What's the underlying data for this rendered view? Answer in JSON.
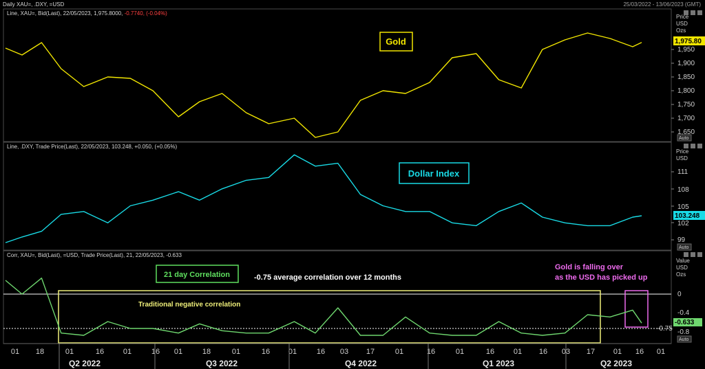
{
  "header": {
    "title": "Daily XAU=, .DXY, =USD",
    "date_range": "25/03/2022 - 13/06/2023 (GMT)"
  },
  "panels": {
    "gold": {
      "legend_prefix": "Line, XAU=, Bid(Last), 22/05/2023, 1,975.8000, ",
      "legend_change": "-0.7740, (-0.04%)",
      "label": "Gold",
      "axis_title": [
        "Price",
        "USD",
        "Ozs"
      ],
      "last_value": "1,975.80",
      "ticks": [
        "1,950",
        "1,900",
        "1,850",
        "1,800",
        "1,750",
        "1,700",
        "1,650"
      ],
      "auto": "Auto"
    },
    "dxy": {
      "legend": "Line, .DXY, Trade Price(Last), 22/05/2023, 103.248, +0.050, (+0.05%)",
      "label": "Dollar Index",
      "axis_title": [
        "Price",
        "USD"
      ],
      "last_value": "103.248",
      "ticks": [
        "111",
        "108",
        "105",
        "102",
        "99"
      ],
      "auto": "Auto"
    },
    "corr": {
      "legend": "Corr, XAU=, Bid(Last), =USD, Trade Price(Last),  21, 22/05/2023, -0.633",
      "label": "21 day Correlation",
      "avg_note": "-0.75 average correlation over 12 months",
      "trad_note": "Traditional negative correlation",
      "falling_note_1": "Gold is falling over",
      "falling_note_2": "as the USD has picked up",
      "axis_title": [
        "Value",
        "USD",
        "Ozs"
      ],
      "last_value": "-0.633",
      "ticks": [
        "0",
        "-0.4",
        "-0.75",
        "-0.8"
      ],
      "auto": "Auto"
    }
  },
  "xaxis": {
    "day_ticks": [
      "01",
      "18",
      "01",
      "16",
      "01",
      "16",
      "01",
      "18",
      "01",
      "16",
      "01",
      "16",
      "03",
      "17",
      "01",
      "16",
      "01",
      "16",
      "01",
      "16",
      "03",
      "17",
      "01",
      "16",
      "01"
    ],
    "quarters": [
      "Q2 2022",
      "Q3 2022",
      "Q4 2022",
      "Q1 2023",
      "Q2 2023"
    ]
  },
  "colors": {
    "gold": "#f2e600",
    "dxy": "#19dbe6",
    "corr": "#6fd86f",
    "box": "#f0f07a",
    "pink": "#ee6bee",
    "text_green": "#5fe05f",
    "axis_text": "#d0d0d0"
  },
  "chart_data": [
    {
      "type": "line",
      "title": "Gold",
      "series_name": "XAU=",
      "ylim": [
        1620,
        2000
      ],
      "x": [
        "2022-03-25",
        "2022-04-05",
        "2022-04-18",
        "2022-05-01",
        "2022-05-16",
        "2022-06-01",
        "2022-06-16",
        "2022-07-01",
        "2022-07-18",
        "2022-08-01",
        "2022-08-16",
        "2022-09-01",
        "2022-09-16",
        "2022-10-03",
        "2022-10-17",
        "2022-11-01",
        "2022-11-16",
        "2022-12-01",
        "2022-12-16",
        "2023-01-01",
        "2023-01-16",
        "2023-02-01",
        "2023-02-16",
        "2023-03-03",
        "2023-03-17",
        "2023-04-01",
        "2023-04-16",
        "2023-05-01",
        "2023-05-16",
        "2023-05-22"
      ],
      "values": [
        1955,
        1930,
        1975,
        1880,
        1815,
        1850,
        1845,
        1800,
        1705,
        1760,
        1790,
        1720,
        1680,
        1700,
        1630,
        1650,
        1765,
        1800,
        1790,
        1830,
        1920,
        1935,
        1840,
        1810,
        1950,
        1985,
        2010,
        1990,
        1960,
        1975.8
      ]
    },
    {
      "type": "line",
      "title": "Dollar Index",
      "series_name": ".DXY",
      "ylim": [
        98,
        114
      ],
      "x": [
        "2022-03-25",
        "2022-04-05",
        "2022-04-18",
        "2022-05-01",
        "2022-05-16",
        "2022-06-01",
        "2022-06-16",
        "2022-07-01",
        "2022-07-18",
        "2022-08-01",
        "2022-08-16",
        "2022-09-01",
        "2022-09-16",
        "2022-10-03",
        "2022-10-17",
        "2022-11-01",
        "2022-11-16",
        "2022-12-01",
        "2022-12-16",
        "2023-01-01",
        "2023-01-16",
        "2023-02-01",
        "2023-02-16",
        "2023-03-03",
        "2023-03-17",
        "2023-04-01",
        "2023-04-16",
        "2023-05-01",
        "2023-05-16",
        "2023-05-22"
      ],
      "values": [
        98.5,
        99.5,
        100.5,
        103.5,
        104,
        102,
        105,
        106,
        107.5,
        106,
        108,
        109.5,
        110,
        114,
        112,
        112.5,
        107,
        105,
        104,
        104,
        102,
        101.5,
        104,
        105.5,
        103,
        102,
        101.5,
        101.5,
        103,
        103.248
      ]
    },
    {
      "type": "line",
      "title": "21 day Correlation",
      "series_name": "Corr XAU=, =USD (21)",
      "ylim": [
        -1.0,
        0.45
      ],
      "reference_lines": [
        0,
        -0.75
      ],
      "x": [
        "2022-03-25",
        "2022-04-05",
        "2022-04-18",
        "2022-05-01",
        "2022-05-16",
        "2022-06-01",
        "2022-06-16",
        "2022-07-01",
        "2022-07-18",
        "2022-08-01",
        "2022-08-16",
        "2022-09-01",
        "2022-09-16",
        "2022-10-03",
        "2022-10-17",
        "2022-11-01",
        "2022-11-16",
        "2022-12-01",
        "2022-12-16",
        "2023-01-01",
        "2023-01-16",
        "2023-02-01",
        "2023-02-16",
        "2023-03-03",
        "2023-03-17",
        "2023-04-01",
        "2023-04-16",
        "2023-05-01",
        "2023-05-16",
        "2023-05-22"
      ],
      "values": [
        0.3,
        0.0,
        0.35,
        -0.85,
        -0.9,
        -0.6,
        -0.75,
        -0.75,
        -0.85,
        -0.65,
        -0.8,
        -0.85,
        -0.85,
        -0.6,
        -0.85,
        -0.3,
        -0.9,
        -0.9,
        -0.5,
        -0.85,
        -0.9,
        -0.9,
        -0.6,
        -0.85,
        -0.9,
        -0.85,
        -0.45,
        -0.5,
        -0.35,
        -0.633
      ]
    }
  ]
}
